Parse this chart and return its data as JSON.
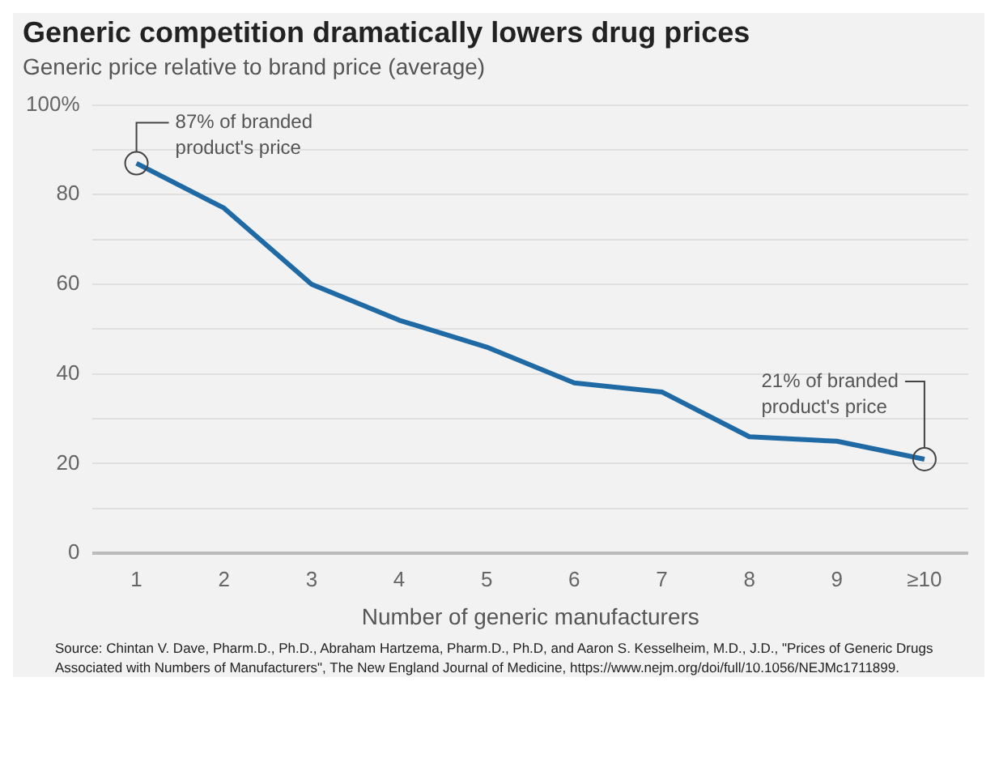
{
  "chart_data": {
    "type": "line",
    "title": "Generic competition dramatically lowers drug prices",
    "subtitle": "Generic price relative to brand price (average)",
    "xlabel": "Number of generic manufacturers",
    "categories": [
      "1",
      "2",
      "3",
      "4",
      "5",
      "6",
      "7",
      "8",
      "9",
      "≥10"
    ],
    "values": [
      87,
      77,
      60,
      52,
      46,
      38,
      36,
      26,
      25,
      21
    ],
    "color": "#1f6aa5",
    "ylim": [
      0,
      100
    ],
    "yticks": [
      0,
      {
        "value": 10,
        "label": null
      },
      20,
      {
        "value": 30,
        "label": null
      },
      40,
      {
        "value": 50,
        "label": null
      },
      60,
      {
        "value": 70,
        "label": null
      },
      80,
      {
        "value": 90,
        "label": null
      },
      {
        "value": 100,
        "label": "100%"
      }
    ],
    "grid": "y",
    "legend": false,
    "marker": "none",
    "line_style": "solid",
    "annotations": [
      {
        "text": "87% of branded product's price",
        "x": "1",
        "y": 87
      },
      {
        "text": "21% of branded product's price",
        "x": "≥10",
        "y": 21
      },
      "Source: Chintan V. Dave, Pharm.D., Ph.D., Abraham Hartzema, Pharm.D., Ph.D, and Aaron S. Kesselheim, M.D., J.D., \"Prices of Generic Drugs Associated with Numbers of Manufacturers\", The New England Journal of Medicine, https://www.nejm.org/doi/full/10.1056/NEJMc1711899."
    ]
  }
}
